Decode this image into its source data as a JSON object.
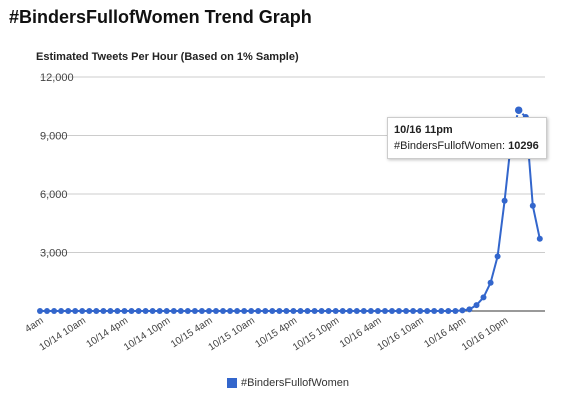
{
  "page": {
    "title": "#BindersFullofWomen Trend Graph"
  },
  "chart_data": {
    "type": "line",
    "title": "Estimated Tweets Per Hour (Based on 1% Sample)",
    "xlabel": "",
    "ylabel": "",
    "ylim": [
      0,
      12000
    ],
    "yticks": [
      "12,000",
      "9,000",
      "6,000",
      "3,000"
    ],
    "x_tick_labels": [
      "4am",
      "10/14 10am",
      "10/14 4pm",
      "10/14 10pm",
      "10/15 4am",
      "10/15 10am",
      "10/15 4pm",
      "10/15 10pm",
      "10/16 4am",
      "10/16 10am",
      "10/16 4pm",
      "10/16 10pm"
    ],
    "grid": true,
    "legend": "bottom",
    "series": [
      {
        "name": "#BindersFullofWomen",
        "color": "#3366cc",
        "values": [
          0,
          0,
          0,
          0,
          0,
          0,
          0,
          0,
          0,
          0,
          0,
          0,
          0,
          0,
          0,
          0,
          0,
          0,
          0,
          0,
          0,
          0,
          0,
          0,
          0,
          0,
          0,
          0,
          0,
          0,
          0,
          0,
          0,
          0,
          0,
          0,
          0,
          0,
          0,
          0,
          0,
          0,
          0,
          0,
          0,
          0,
          0,
          0,
          0,
          0,
          0,
          0,
          0,
          0,
          0,
          0,
          0,
          0,
          0,
          0,
          30,
          80,
          300,
          700,
          1450,
          2800,
          5650,
          9000,
          10296,
          9950,
          5400,
          3700
        ]
      }
    ],
    "tooltip": {
      "date": "10/16 11pm",
      "series": "#BindersFullofWomen: ",
      "value": "10296"
    }
  }
}
